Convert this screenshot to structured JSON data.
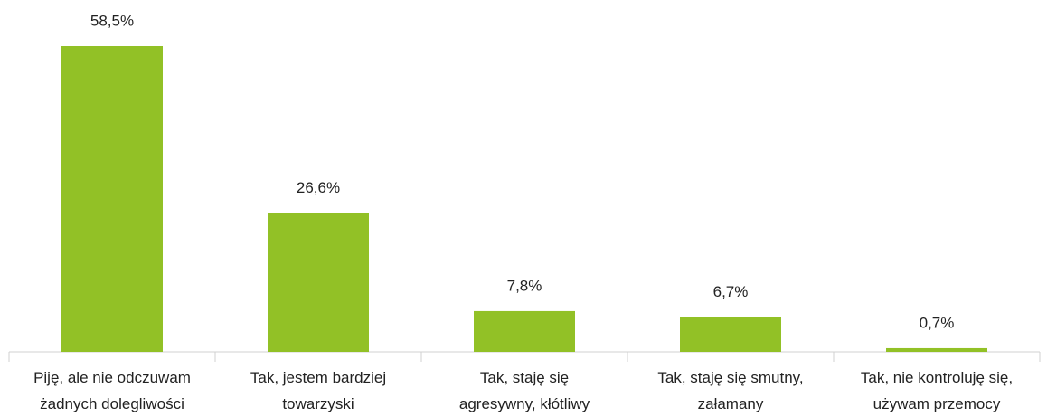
{
  "chart_data": {
    "type": "bar",
    "categories": [
      "Piję, ale nie odczuwam\nżadnych dolegliwości",
      "Tak, jestem bardziej\ntowarzyski",
      "Tak, staję się\nagresywny, kłótliwy",
      "Tak, staję się smutny,\nzałamany",
      "Tak, nie kontroluję się,\nużywam przemocy"
    ],
    "values": [
      58.5,
      26.6,
      7.8,
      6.7,
      0.7
    ],
    "value_labels": [
      "58,5%",
      "26,6%",
      "7,8%",
      "6,7%",
      "0,7%"
    ],
    "color": "#92c126"
  }
}
